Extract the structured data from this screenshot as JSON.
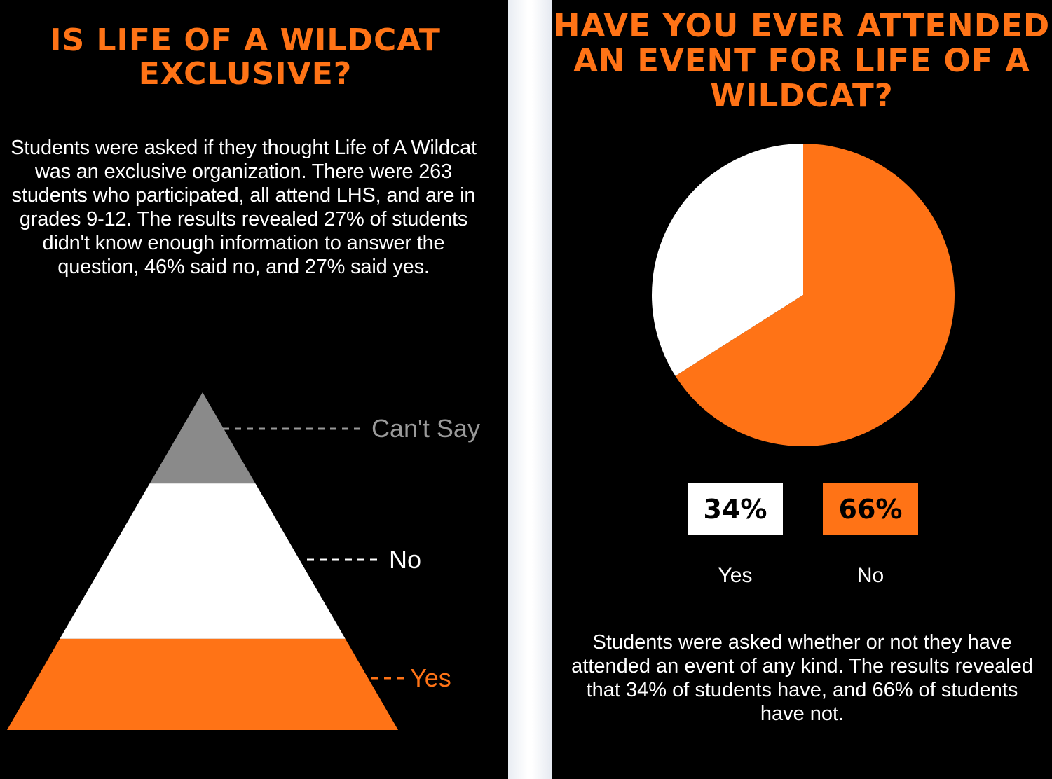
{
  "left": {
    "title": "IS LIFE OF A WILDCAT EXCLUSIVE?",
    "description": "Students were asked if they thought Life of A Wildcat was an exclusive organization. There were 263 students who participated, all attend LHS, and are in grades 9-12. The results revealed 27% of students didn't know enough information to answer the question, 46% said no, and 27% said yes."
  },
  "right": {
    "title": "HAVE YOU EVER ATTENDED AN EVENT FOR LIFE OF A WILDCAT?",
    "description": "Students were asked whether or not they have attended an event of any kind. The results revealed that 34% of students have, and 66% of students have not.",
    "yes_pct_label": "34%",
    "no_pct_label": "66%",
    "yes_label": "Yes",
    "no_label": "No"
  },
  "colors": {
    "orange": "#ff7316",
    "white": "#ffffff",
    "gray": "#8a8a8a",
    "background": "#000000"
  },
  "chart_data": [
    {
      "type": "pyramid",
      "title": "IS LIFE OF A WILDCAT EXCLUSIVE?",
      "categories": [
        "Can't Say",
        "No",
        "Yes"
      ],
      "values": [
        27,
        46,
        27
      ],
      "unit": "%",
      "colors": [
        "#8a8a8a",
        "#ffffff",
        "#ff7316"
      ]
    },
    {
      "type": "pie",
      "title": "HAVE YOU EVER ATTENDED AN EVENT FOR LIFE OF A WILDCAT?",
      "categories": [
        "Yes",
        "No"
      ],
      "values": [
        34,
        66
      ],
      "unit": "%",
      "colors": [
        "#ffffff",
        "#ff7316"
      ]
    }
  ]
}
